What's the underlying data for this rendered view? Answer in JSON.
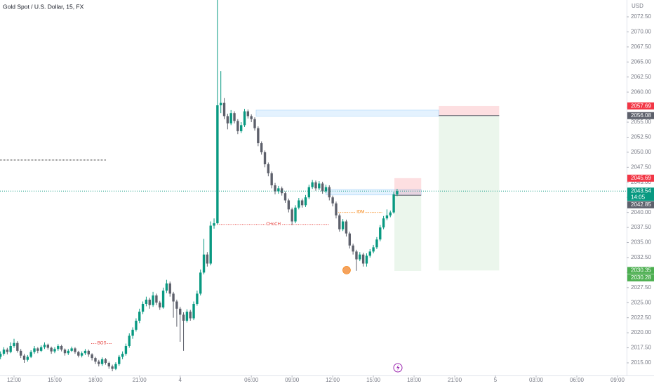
{
  "chart_data": {
    "type": "candlestick",
    "title": "Gold Spot / U.S. Dollar, 15, FX",
    "currency": "USD",
    "colors": {
      "up": "#089981",
      "down": "#5d606b"
    },
    "xlim": [
      -0.14,
      184.7
    ],
    "ylim": [
      2012.9,
      2075.3
    ],
    "xticks": [
      {
        "value": 4,
        "label": "12:00"
      },
      {
        "value": 16,
        "label": "15:00"
      },
      {
        "value": 28,
        "label": "18:00"
      },
      {
        "value": 41,
        "label": "21:00"
      },
      {
        "value": 53,
        "label": "4"
      },
      {
        "value": 74,
        "label": "06:00"
      },
      {
        "value": 86,
        "label": "09:00"
      },
      {
        "value": 98,
        "label": "12:00"
      },
      {
        "value": 110,
        "label": "15:00"
      },
      {
        "value": 122,
        "label": "18:00"
      },
      {
        "value": 134,
        "label": "21:00"
      },
      {
        "value": 146,
        "label": "5"
      },
      {
        "value": 158,
        "label": "03:00"
      },
      {
        "value": 170,
        "label": "06:00"
      },
      {
        "value": 182,
        "label": "09:00"
      }
    ],
    "yticks": [
      {
        "value": 2015,
        "label": "2015.00"
      },
      {
        "value": 2017.5,
        "label": "2017.50"
      },
      {
        "value": 2020,
        "label": "2020.00"
      },
      {
        "value": 2022.5,
        "label": "2022.50"
      },
      {
        "value": 2025,
        "label": "2025.00"
      },
      {
        "value": 2027.5,
        "label": "2027.50"
      },
      {
        "value": 2030,
        "label": "2030.00"
      },
      {
        "value": 2032.5,
        "label": "2032.50"
      },
      {
        "value": 2035,
        "label": "2035.00"
      },
      {
        "value": 2037.5,
        "label": "2037.50"
      },
      {
        "value": 2040,
        "label": "2040.00"
      },
      {
        "value": 2042.5,
        "label": "2042.50"
      },
      {
        "value": 2045,
        "label": "2045.00"
      },
      {
        "value": 2047.5,
        "label": "2047.50"
      },
      {
        "value": 2050,
        "label": "2050.00"
      },
      {
        "value": 2052.5,
        "label": "2052.50"
      },
      {
        "value": 2055,
        "label": "2055.00"
      },
      {
        "value": 2057.5,
        "label": "2057.50"
      },
      {
        "value": 2060,
        "label": "2060.00"
      },
      {
        "value": 2062.5,
        "label": "2062.50"
      },
      {
        "value": 2065,
        "label": "2065.00"
      },
      {
        "value": 2067.5,
        "label": "2067.50"
      },
      {
        "value": 2070,
        "label": "2070.00"
      },
      {
        "value": 2072.5,
        "label": "2072.50"
      }
    ],
    "candles": [
      [
        2016.0,
        2016.9,
        2015.6,
        2016.5
      ],
      [
        2016.5,
        2017.6,
        2016.2,
        2017.2
      ],
      [
        2017.2,
        2017.5,
        2016.4,
        2016.8
      ],
      [
        2016.8,
        2018.4,
        2016.6,
        2017.8
      ],
      [
        2017.8,
        2019.0,
        2017.5,
        2018.3
      ],
      [
        2018.3,
        2018.6,
        2016.7,
        2017.0
      ],
      [
        2017.0,
        2017.3,
        2015.8,
        2016.2
      ],
      [
        2016.2,
        2016.5,
        2015.0,
        2015.5
      ],
      [
        2015.5,
        2016.3,
        2015.2,
        2016.0
      ],
      [
        2016.0,
        2017.1,
        2015.8,
        2016.8
      ],
      [
        2016.8,
        2017.8,
        2016.5,
        2017.4
      ],
      [
        2017.4,
        2017.6,
        2016.6,
        2017.0
      ],
      [
        2017.0,
        2017.9,
        2016.8,
        2017.6
      ],
      [
        2017.6,
        2018.4,
        2017.3,
        2018.0
      ],
      [
        2018.0,
        2018.2,
        2017.2,
        2017.5
      ],
      [
        2017.5,
        2017.7,
        2016.5,
        2016.9
      ],
      [
        2016.9,
        2017.6,
        2016.6,
        2017.3
      ],
      [
        2017.3,
        2018.1,
        2017.0,
        2017.8
      ],
      [
        2017.8,
        2018.0,
        2016.9,
        2017.2
      ],
      [
        2017.2,
        2017.4,
        2016.2,
        2016.6
      ],
      [
        2016.6,
        2017.3,
        2016.3,
        2017.0
      ],
      [
        2017.0,
        2017.7,
        2016.8,
        2017.4
      ],
      [
        2017.4,
        2017.6,
        2016.5,
        2016.8
      ],
      [
        2016.8,
        2017.0,
        2015.9,
        2016.2
      ],
      [
        2016.2,
        2016.9,
        2015.9,
        2016.6
      ],
      [
        2016.6,
        2017.3,
        2016.3,
        2017.0
      ],
      [
        2017.0,
        2017.2,
        2016.0,
        2016.4
      ],
      [
        2016.4,
        2016.6,
        2015.4,
        2015.8
      ],
      [
        2015.8,
        2016.0,
        2014.8,
        2015.2
      ],
      [
        2015.2,
        2015.5,
        2014.4,
        2014.8
      ],
      [
        2014.8,
        2015.9,
        2014.5,
        2015.6
      ],
      [
        2015.6,
        2015.8,
        2014.7,
        2015.0
      ],
      [
        2015.0,
        2015.2,
        2014.0,
        2014.4
      ],
      [
        2014.4,
        2014.7,
        2013.6,
        2014.0
      ],
      [
        2014.0,
        2015.1,
        2013.8,
        2014.8
      ],
      [
        2014.8,
        2016.3,
        2014.5,
        2016.0
      ],
      [
        2016.0,
        2016.9,
        2015.6,
        2016.5
      ],
      [
        2016.5,
        2018.2,
        2016.2,
        2017.8
      ],
      [
        2017.8,
        2019.9,
        2017.5,
        2019.5
      ],
      [
        2019.5,
        2020.9,
        2019.0,
        2020.5
      ],
      [
        2020.5,
        2022.4,
        2020.2,
        2022.0
      ],
      [
        2022.0,
        2024.0,
        2021.6,
        2023.5
      ],
      [
        2023.5,
        2025.2,
        2023.1,
        2024.8
      ],
      [
        2024.8,
        2026.0,
        2024.4,
        2025.5
      ],
      [
        2025.5,
        2025.8,
        2024.0,
        2024.6
      ],
      [
        2024.6,
        2026.8,
        2024.3,
        2026.2
      ],
      [
        2026.2,
        2026.5,
        2024.6,
        2025.0
      ],
      [
        2025.0,
        2025.3,
        2023.8,
        2024.2
      ],
      [
        2024.2,
        2027.5,
        2024.0,
        2027.0
      ],
      [
        2027.0,
        2028.8,
        2026.6,
        2028.2
      ],
      [
        2028.2,
        2028.5,
        2026.0,
        2026.5
      ],
      [
        2026.5,
        2026.8,
        2022.5,
        2025.2
      ],
      [
        2025.2,
        2025.5,
        2021.0,
        2024.0
      ],
      [
        2024.0,
        2024.3,
        2018.5,
        2023.0
      ],
      [
        2023.0,
        2023.4,
        2017.0,
        2022.0
      ],
      [
        2022.0,
        2023.9,
        2021.7,
        2023.5
      ],
      [
        2023.5,
        2023.8,
        2022.0,
        2022.4
      ],
      [
        2022.4,
        2025.2,
        2022.1,
        2024.8
      ],
      [
        2024.8,
        2027.0,
        2024.5,
        2026.5
      ],
      [
        2026.5,
        2030.5,
        2026.2,
        2030.0
      ],
      [
        2030.0,
        2035.6,
        2029.7,
        2033.0
      ],
      [
        2033.0,
        2033.4,
        2031.0,
        2031.5
      ],
      [
        2031.5,
        2038.5,
        2031.2,
        2037.8
      ],
      [
        2037.8,
        2039.0,
        2037.3,
        2038.2
      ],
      [
        2038.2,
        2075.3,
        2038.0,
        2057.8
      ],
      [
        2057.8,
        2063.5,
        2056.5,
        2058.2
      ],
      [
        2058.2,
        2059.0,
        2055.5,
        2056.0
      ],
      [
        2056.0,
        2056.4,
        2053.8,
        2054.8
      ],
      [
        2054.8,
        2057.0,
        2054.5,
        2056.5
      ],
      [
        2056.5,
        2056.8,
        2054.8,
        2055.2
      ],
      [
        2055.2,
        2055.5,
        2053.0,
        2053.5
      ],
      [
        2053.5,
        2055.0,
        2053.2,
        2054.5
      ],
      [
        2054.5,
        2057.2,
        2054.2,
        2056.8
      ],
      [
        2056.8,
        2057.1,
        2055.6,
        2056.0
      ],
      [
        2056.0,
        2056.3,
        2055.0,
        2055.5
      ],
      [
        2055.5,
        2055.8,
        2053.6,
        2054.0
      ],
      [
        2054.0,
        2054.3,
        2051.0,
        2051.5
      ],
      [
        2051.5,
        2051.8,
        2049.6,
        2050.0
      ],
      [
        2050.0,
        2050.3,
        2047.5,
        2048.0
      ],
      [
        2048.0,
        2048.3,
        2046.0,
        2046.5
      ],
      [
        2046.5,
        2046.8,
        2044.0,
        2044.5
      ],
      [
        2044.5,
        2044.9,
        2043.0,
        2043.5
      ],
      [
        2043.5,
        2044.4,
        2043.1,
        2044.0
      ],
      [
        2044.0,
        2044.3,
        2042.8,
        2043.2
      ],
      [
        2043.2,
        2043.5,
        2041.6,
        2042.0
      ],
      [
        2042.0,
        2042.3,
        2040.0,
        2040.5
      ],
      [
        2040.5,
        2040.8,
        2037.9,
        2038.5
      ],
      [
        2038.5,
        2041.2,
        2038.2,
        2040.8
      ],
      [
        2040.8,
        2042.4,
        2040.5,
        2042.0
      ],
      [
        2042.0,
        2042.3,
        2040.8,
        2041.2
      ],
      [
        2041.2,
        2042.9,
        2040.9,
        2042.5
      ],
      [
        2042.5,
        2044.6,
        2042.2,
        2044.2
      ],
      [
        2044.2,
        2045.4,
        2043.9,
        2045.0
      ],
      [
        2045.0,
        2045.3,
        2043.6,
        2044.0
      ],
      [
        2044.0,
        2045.2,
        2043.7,
        2044.8
      ],
      [
        2044.8,
        2045.1,
        2043.1,
        2043.5
      ],
      [
        2043.5,
        2044.6,
        2043.2,
        2044.2
      ],
      [
        2044.2,
        2044.5,
        2042.0,
        2042.5
      ],
      [
        2042.5,
        2042.8,
        2041.0,
        2041.5
      ],
      [
        2041.5,
        2041.8,
        2039.0,
        2039.5
      ],
      [
        2039.5,
        2039.8,
        2036.8,
        2037.2
      ],
      [
        2037.2,
        2038.9,
        2036.9,
        2038.5
      ],
      [
        2038.5,
        2038.8,
        2036.0,
        2036.5
      ],
      [
        2036.5,
        2036.8,
        2034.0,
        2034.5
      ],
      [
        2034.5,
        2034.8,
        2033.0,
        2033.5
      ],
      [
        2033.5,
        2033.8,
        2030.3,
        2032.2
      ],
      [
        2032.2,
        2033.4,
        2031.9,
        2033.0
      ],
      [
        2033.0,
        2033.3,
        2031.0,
        2031.5
      ],
      [
        2031.5,
        2033.2,
        2031.0,
        2032.8
      ],
      [
        2032.8,
        2033.9,
        2032.5,
        2033.5
      ],
      [
        2033.5,
        2034.6,
        2033.2,
        2034.2
      ],
      [
        2034.2,
        2035.9,
        2033.9,
        2035.5
      ],
      [
        2035.5,
        2037.9,
        2035.2,
        2037.5
      ],
      [
        2037.5,
        2039.4,
        2037.2,
        2039.0
      ],
      [
        2039.0,
        2040.5,
        2038.7,
        2039.5
      ],
      [
        2039.5,
        2040.3,
        2039.2,
        2040.0
      ],
      [
        2040.0,
        2043.4,
        2039.8,
        2043.0
      ],
      [
        2043.0,
        2043.9,
        2042.7,
        2043.54
      ]
    ],
    "countdown": "14:05",
    "levels": [
      {
        "label": "BOS",
        "price": 2018.2,
        "from": 26.8,
        "to": 33,
        "color": "#e53935"
      },
      {
        "label": "CHoCH",
        "price": 2038.0,
        "from": 64,
        "to": 97,
        "color": "#e53935"
      },
      {
        "label": "IDM",
        "price": 2040.0,
        "from": 99.7,
        "to": 112.7,
        "color": "#f57c00"
      }
    ],
    "lines": [
      {
        "price": 2048.7,
        "from": -0.14,
        "to": 31.3,
        "color": "#333333"
      }
    ],
    "zones": [
      {
        "from": 75.4,
        "to": 129.3,
        "low": 2056.0,
        "high": 2057.0,
        "color": "#2196f3"
      },
      {
        "from": 96,
        "to": 124.1,
        "low": 2042.9,
        "high": 2043.8,
        "color": "#2196f3"
      }
    ],
    "positions": [
      {
        "from": 116.2,
        "to": 124.1,
        "stop": 2045.69,
        "entry": 2042.85,
        "target": 2030.28
      },
      {
        "from": 129.3,
        "to": 147.1,
        "stop": 2057.69,
        "entry": 2056.08,
        "target": 2030.35
      }
    ],
    "marker": {
      "x": 102.1,
      "price": 2030.4,
      "color": "#f5a25d"
    }
  }
}
